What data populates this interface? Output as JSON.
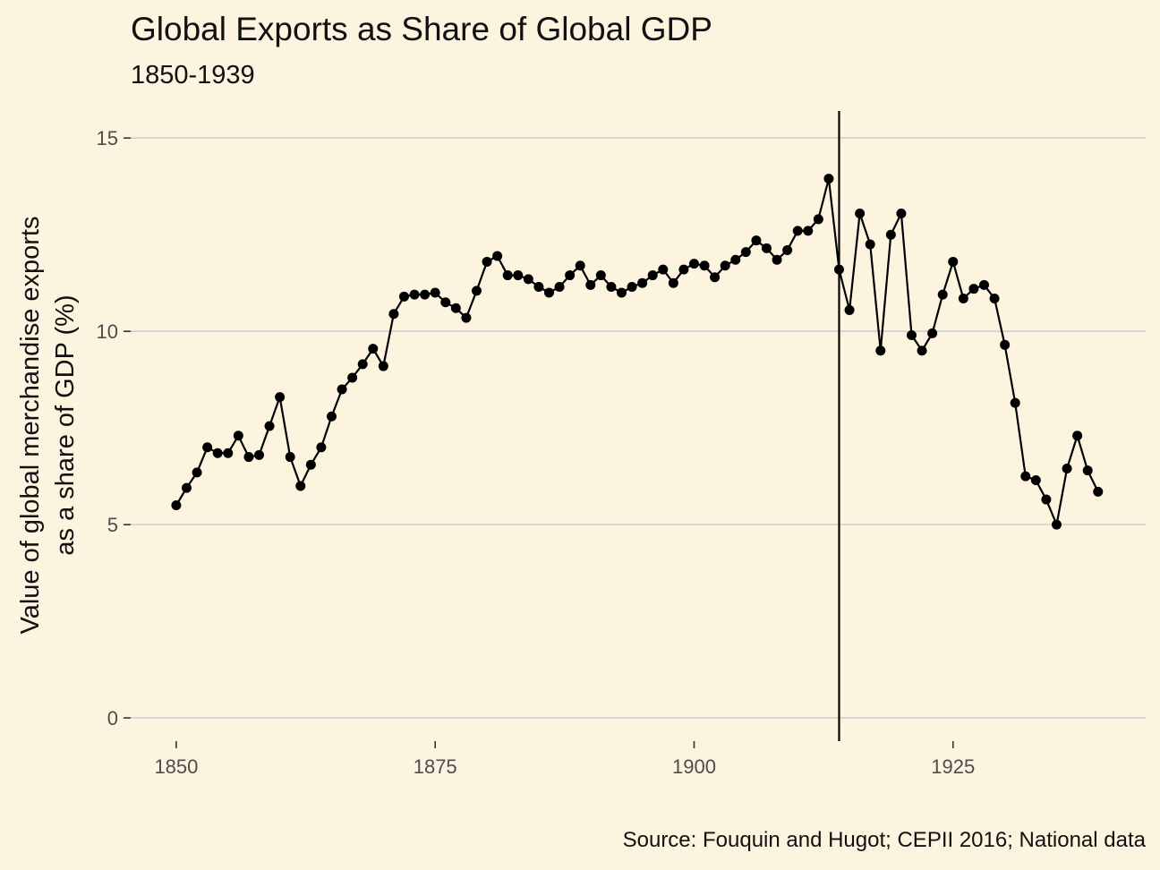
{
  "chart_data": {
    "type": "line",
    "title": "Global Exports as Share of Global GDP",
    "subtitle": "1850-1939",
    "caption": "Source: Fouquin and Hugot; CEPII 2016; National data",
    "xlabel": "",
    "ylabel_lines": [
      "Value of global merchandise exports",
      "as a share of GDP (%)"
    ],
    "xlim": [
      1845.6,
      1943.6
    ],
    "ylim": [
      -0.6,
      15.7
    ],
    "x_ticks": [
      1850,
      1875,
      1900,
      1925
    ],
    "y_ticks": [
      0,
      5,
      10,
      15
    ],
    "grid": "horizontal",
    "markers": true,
    "vline_x": 1914,
    "colors": {
      "background": "#fdf4df",
      "line": "#000000",
      "grid": "#cfcfcf"
    },
    "series": [
      {
        "x": [
          1850,
          1851,
          1852,
          1853,
          1854,
          1855,
          1856,
          1857,
          1858,
          1859,
          1860,
          1861,
          1862,
          1863,
          1864,
          1865,
          1866,
          1867,
          1868,
          1869,
          1870,
          1871,
          1872,
          1873,
          1874,
          1875,
          1876,
          1877,
          1878,
          1879,
          1880,
          1881,
          1882,
          1883,
          1884,
          1885,
          1886,
          1887,
          1888,
          1889,
          1890,
          1891,
          1892,
          1893,
          1894,
          1895,
          1896,
          1897,
          1898,
          1899,
          1900,
          1901,
          1902,
          1903,
          1904,
          1905,
          1906,
          1907,
          1908,
          1909,
          1910,
          1911,
          1912,
          1913,
          1914,
          1915,
          1916,
          1917,
          1918,
          1919,
          1920,
          1921,
          1922,
          1923,
          1924,
          1925,
          1926,
          1927,
          1928,
          1929,
          1930,
          1931,
          1932,
          1933,
          1934,
          1935,
          1936,
          1937,
          1938,
          1939
        ],
        "values": [
          5.5,
          5.95,
          6.35,
          7.0,
          6.85,
          6.85,
          7.3,
          6.75,
          6.8,
          7.55,
          8.3,
          6.75,
          6.0,
          6.55,
          7.0,
          7.8,
          8.5,
          8.8,
          9.15,
          9.55,
          9.1,
          10.45,
          10.9,
          10.95,
          10.95,
          11.0,
          10.75,
          10.6,
          10.35,
          11.05,
          11.8,
          11.95,
          11.45,
          11.45,
          11.35,
          11.15,
          11.0,
          11.15,
          11.45,
          11.7,
          11.2,
          11.45,
          11.15,
          11.0,
          11.15,
          11.25,
          11.45,
          11.6,
          11.25,
          11.6,
          11.75,
          11.7,
          11.4,
          11.7,
          11.85,
          12.05,
          12.35,
          12.15,
          11.85,
          12.1,
          12.6,
          12.6,
          12.9,
          13.95,
          11.6,
          10.55,
          13.05,
          12.25,
          9.5,
          12.5,
          13.05,
          9.9,
          9.5,
          9.95,
          10.95,
          11.8,
          10.85,
          11.1,
          11.2,
          10.85,
          9.65,
          8.15,
          6.25,
          6.15,
          5.65,
          5.0,
          6.45,
          7.3,
          6.4,
          5.85
        ]
      }
    ]
  }
}
